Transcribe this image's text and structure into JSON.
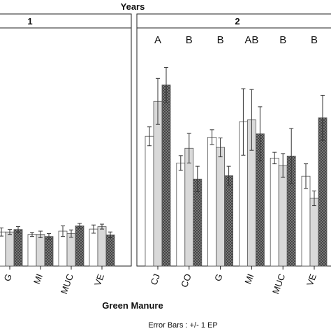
{
  "chart_data": [
    {
      "type": "bar",
      "panel_label": "1",
      "categories": [
        "G",
        "MI",
        "MUC",
        "VE"
      ],
      "series": [
        {
          "pattern": "white",
          "values": [
            0.83,
            0.77,
            0.85,
            0.9
          ],
          "errors": [
            0.1,
            0.05,
            0.13,
            0.1
          ]
        },
        {
          "pattern": "light-gray",
          "values": [
            0.83,
            0.77,
            0.79,
            0.96
          ],
          "errors": [
            0.06,
            0.08,
            0.09,
            0.06
          ]
        },
        {
          "pattern": "crosshatch",
          "values": [
            0.89,
            0.72,
            0.98,
            0.76
          ],
          "errors": [
            0.07,
            0.07,
            0.06,
            0.07
          ]
        }
      ],
      "ylim": [
        0,
        5.8
      ]
    },
    {
      "type": "bar",
      "panel_label": "2",
      "categories": [
        "CJ",
        "CO",
        "G",
        "MI",
        "MUC",
        "VE"
      ],
      "letters": [
        "A",
        "B",
        "B",
        "AB",
        "B",
        "B"
      ],
      "series": [
        {
          "pattern": "white",
          "values": [
            3.16,
            2.51,
            3.14,
            3.51,
            2.63,
            2.19
          ],
          "errors": [
            0.23,
            0.18,
            0.18,
            0.81,
            0.14,
            0.3
          ]
        },
        {
          "pattern": "light-gray",
          "values": [
            4.01,
            2.87,
            2.89,
            3.56,
            2.45,
            1.65
          ],
          "errors": [
            0.56,
            0.36,
            0.23,
            0.74,
            0.29,
            0.18
          ]
        },
        {
          "pattern": "crosshatch",
          "values": [
            4.41,
            2.12,
            2.2,
            3.22,
            2.68,
            3.61
          ],
          "errors": [
            0.43,
            0.31,
            0.23,
            0.66,
            0.67,
            0.55
          ]
        }
      ],
      "ylim": [
        0,
        5.8
      ]
    }
  ],
  "top_title": "Years",
  "x_title": "Green Manure",
  "footnote": "Error Bars : +/- 1 EP"
}
